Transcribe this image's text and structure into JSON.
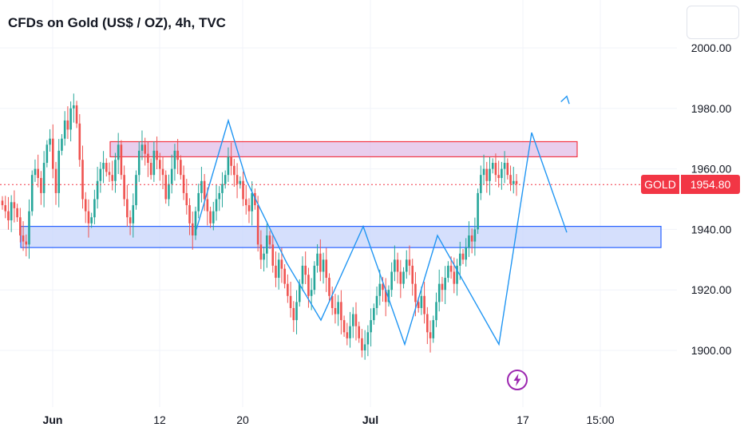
{
  "title": "CFDs on Gold (US$ / OZ), 4h, TVC",
  "symbol_tag": "GOLD",
  "price_tag": "1954.80",
  "icons": {
    "event": "lightning-bolt-icon"
  },
  "colors": {
    "up": "#26a69a",
    "down": "#ef5350",
    "projection": "#2196f3",
    "resistance_border": "#f23645",
    "resistance_fill": "#e1bee7",
    "support_border": "#2962ff",
    "support_fill": "#c7d4fb",
    "price_line": "#f23645",
    "event": "#9c27b0"
  },
  "chart_data": {
    "type": "candlestick",
    "title": "CFDs on Gold (US$ / OZ), 4h, TVC",
    "ylim": [
      1887,
      2012
    ],
    "y_ticks": [
      "2000.00",
      "1980.00",
      "1960.00",
      "1940.00",
      "1920.00",
      "1900.00"
    ],
    "x_ticks": [
      "Jun",
      "12",
      "20",
      "Jul",
      "17",
      "15:00"
    ],
    "last_price": 1954.8,
    "zones": [
      {
        "role": "resistance",
        "y_low": 1964.0,
        "y_high": 1969.0
      },
      {
        "role": "support",
        "y_low": 1934.0,
        "y_high": 1941.0
      }
    ],
    "projection_path_prices": [
      1940,
      1976,
      1956,
      1929,
      1910,
      1941,
      1902,
      1938,
      1902,
      1972,
      1939,
      1984
    ],
    "candles_close": [
      1948,
      1946,
      1943,
      1949,
      1947,
      1944,
      1938,
      1936,
      1935,
      1946,
      1958,
      1960,
      1957,
      1952,
      1962,
      1968,
      1970,
      1960,
      1952,
      1966,
      1970,
      1976,
      1973,
      1980,
      1981,
      1975,
      1963,
      1950,
      1946,
      1942,
      1944,
      1950,
      1956,
      1960,
      1962,
      1959,
      1958,
      1956,
      1963,
      1968,
      1958,
      1950,
      1944,
      1942,
      1948,
      1958,
      1966,
      1968,
      1965,
      1962,
      1958,
      1966,
      1963,
      1960,
      1958,
      1950,
      1955,
      1960,
      1966,
      1963,
      1958,
      1952,
      1948,
      1942,
      1938,
      1946,
      1952,
      1956,
      1950,
      1946,
      1942,
      1946,
      1950,
      1952,
      1955,
      1958,
      1964,
      1961,
      1958,
      1955,
      1956,
      1950,
      1948,
      1946,
      1952,
      1948,
      1935,
      1930,
      1932,
      1938,
      1935,
      1928,
      1924,
      1930,
      1927,
      1922,
      1918,
      1914,
      1910,
      1916,
      1922,
      1928,
      1925,
      1918,
      1920,
      1928,
      1932,
      1926,
      1930,
      1924,
      1918,
      1914,
      1912,
      1916,
      1910,
      1906,
      1904,
      1908,
      1912,
      1908,
      1904,
      1900,
      1902,
      1906,
      1910,
      1914,
      1918,
      1922,
      1920,
      1916,
      1920,
      1926,
      1930,
      1926,
      1922,
      1926,
      1930,
      1928,
      1922,
      1916,
      1914,
      1918,
      1912,
      1906,
      1904,
      1910,
      1916,
      1922,
      1920,
      1924,
      1928,
      1926,
      1922,
      1928,
      1932,
      1930,
      1934,
      1938,
      1936,
      1940,
      1952,
      1958,
      1960,
      1956,
      1960,
      1962,
      1958,
      1957,
      1960,
      1962,
      1958,
      1955,
      1956,
      1955
    ]
  }
}
